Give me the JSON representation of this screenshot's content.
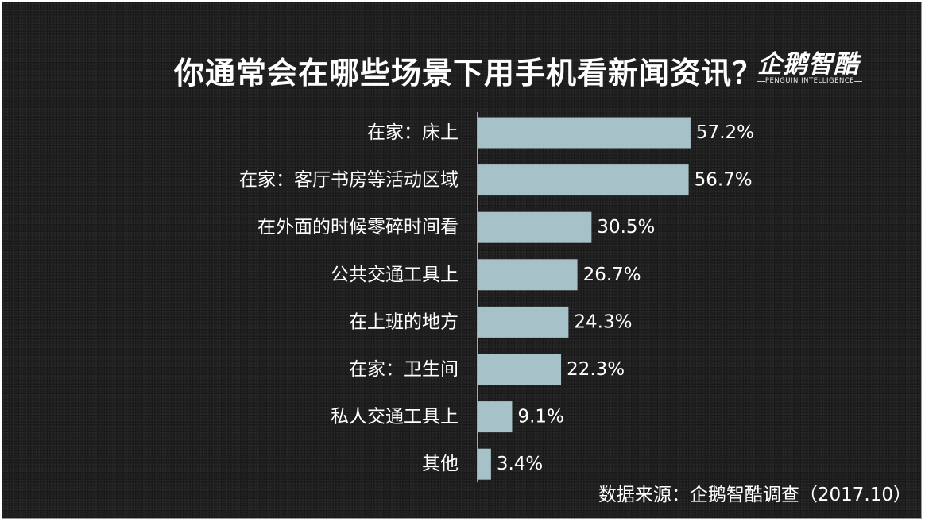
{
  "title": "你通常会在哪些场景下用手机看新闻资讯？",
  "logo": {
    "mark": "企鹅智酷",
    "sub": "PENGUIN INTELLIGENCE"
  },
  "source": "数据来源：企鹅智酷调查（2017.10）",
  "colors": {
    "background": "#222222",
    "bar": "#a6c2c8",
    "text": "#ffffff",
    "axis": "#d9d9d9"
  },
  "chart_data": {
    "type": "bar",
    "orientation": "horizontal",
    "categories": [
      "在家：床上",
      "在家：客厅书房等活动区域",
      "在外面的时候零碎时间看",
      "公共交通工具上",
      "在上班的地方",
      "在家：卫生间",
      "私人交通工具上",
      "其他"
    ],
    "values": [
      57.2,
      56.7,
      30.5,
      26.7,
      24.3,
      22.3,
      9.1,
      3.4
    ],
    "data_labels": [
      "57.2%",
      "56.7%",
      "30.5%",
      "26.7%",
      "24.3%",
      "22.3%",
      "9.1%",
      "3.4%"
    ],
    "title": "你通常会在哪些场景下用手机看新闻资讯？",
    "xlabel": "",
    "ylabel": "",
    "xlim": [
      0,
      60
    ],
    "grid": false,
    "legend": "none"
  }
}
